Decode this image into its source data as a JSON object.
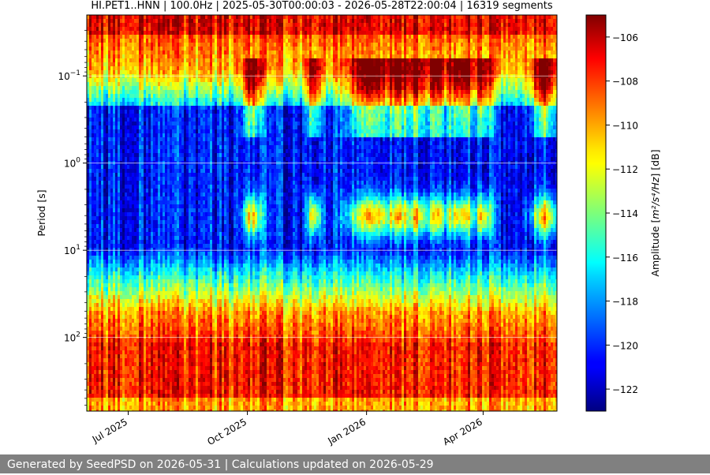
{
  "chart_data": {
    "type": "heatmap",
    "title": "HI.PET1..HNN | 100.0Hz | 2025-05-30T00:00:03 - 2026-05-28T22:00:04 | 16319 segments",
    "ylabel": "Period [s]",
    "y_scale": "log",
    "y_inverted": true,
    "ylim": [
      0.02,
      700
    ],
    "x_range": [
      "2025-05-30",
      "2026-05-28"
    ],
    "x_ticks": [
      {
        "date": "2025-07-01",
        "label": "Jul 2025"
      },
      {
        "date": "2025-10-01",
        "label": "Oct 2025"
      },
      {
        "date": "2026-01-01",
        "label": "Jan 2026"
      },
      {
        "date": "2026-04-01",
        "label": "Apr 2026"
      }
    ],
    "y_ticks": [
      {
        "value": 0.1,
        "base": "10",
        "exp": "−1"
      },
      {
        "value": 1,
        "base": "10",
        "exp": "0"
      },
      {
        "value": 10,
        "base": "10",
        "exp": "1"
      },
      {
        "value": 100,
        "base": "10",
        "exp": "2"
      }
    ],
    "grid": true,
    "colormap": "jet",
    "colorbar": {
      "label_prefix": "Amplitude [",
      "label_unit": "m²/s⁴/Hz",
      "label_suffix": "] [dB]",
      "range": [
        -123,
        -105
      ],
      "ticks": [
        -106,
        -108,
        -110,
        -112,
        -114,
        -116,
        -118,
        -120,
        -122
      ]
    }
  },
  "footer": {
    "text": "Generated by SeedPSD on 2026-05-31 | Calculations updated on 2026-05-29"
  }
}
